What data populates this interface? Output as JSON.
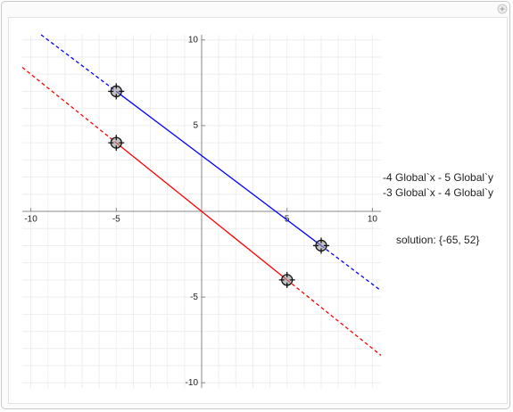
{
  "chart_data": {
    "type": "line",
    "series": [
      {
        "name": "-4 Global`x - 5 Global`y",
        "color": "#ff0000",
        "x": [
          -5,
          5
        ],
        "values": [
          4,
          -4
        ]
      },
      {
        "name": "-3 Global`x - 4 Global`y",
        "color": "#0000ff",
        "x": [
          -5,
          7
        ],
        "values": [
          7,
          -2
        ]
      }
    ],
    "annotation": "solution: {-65, 52}",
    "xlim": [
      -10.5,
      10.5
    ],
    "ylim": [
      -10.3,
      10.3
    ],
    "xticks": [
      -10,
      -5,
      5,
      10
    ],
    "yticks": [
      -10,
      -5,
      5,
      10
    ],
    "gridlines": [
      -10,
      -9,
      -8,
      -7,
      -6,
      -5,
      -4,
      -3,
      -2,
      -1,
      0,
      1,
      2,
      3,
      4,
      5,
      6,
      7,
      8,
      9,
      10
    ],
    "grid": true
  }
}
